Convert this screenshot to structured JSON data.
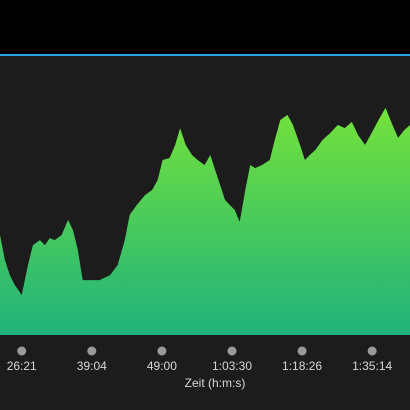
{
  "chart_data": {
    "type": "area",
    "xlabel": "Zeit (h:m:s)",
    "x": [
      -0.31,
      -0.24,
      -0.17,
      -0.1,
      0,
      0.09,
      0.16,
      0.26,
      0.33,
      0.4,
      0.47,
      0.57,
      0.66,
      0.73,
      0.8,
      0.87,
      0.97,
      1.11,
      1.26,
      1.37,
      1.47,
      1.54,
      1.64,
      1.76,
      1.86,
      1.94,
      2.01,
      2.11,
      2.19,
      2.26,
      2.34,
      2.43,
      2.51,
      2.61,
      2.69,
      2.76,
      2.83,
      2.9,
      2.97,
      3.04,
      3.11,
      3.19,
      3.26,
      3.33,
      3.43,
      3.54,
      3.61,
      3.69,
      3.79,
      3.87,
      3.97,
      4.04,
      4.11,
      4.19,
      4.29,
      4.4,
      4.51,
      4.61,
      4.71,
      4.8,
      4.9,
      5.0,
      5.09,
      5.19,
      5.29,
      5.37,
      5.46,
      5.54
    ],
    "values": [
      35.7,
      26.8,
      21.4,
      17.9,
      14.3,
      25,
      32.1,
      33.9,
      32.1,
      34.6,
      33.9,
      35.7,
      41.1,
      37.5,
      30.4,
      19.6,
      19.6,
      19.6,
      21.4,
      25,
      33.9,
      42.9,
      46.4,
      50,
      51.8,
      55.4,
      62.5,
      63.2,
      67.9,
      73.9,
      67.9,
      64.3,
      62.5,
      60.7,
      64.3,
      58.9,
      53.6,
      48.2,
      46.4,
      44.6,
      40.4,
      51.8,
      60.7,
      59.6,
      60.7,
      62.5,
      69.6,
      76.8,
      78.6,
      75,
      67.9,
      62.5,
      64.3,
      66.1,
      69.6,
      72.1,
      75,
      73.9,
      76.1,
      71.4,
      67.9,
      72.5,
      76.8,
      81.1,
      75,
      70.4,
      73.2,
      75
    ],
    "gradient": [
      "#74e23a",
      "#1fb27c"
    ],
    "xlim": [
      -0.31,
      5.54
    ],
    "ylim": [
      0,
      100
    ],
    "xticks": [
      {
        "value": 0,
        "label": "26:21"
      },
      {
        "value": 1,
        "label": "39:04"
      },
      {
        "value": 2,
        "label": "49:00"
      },
      {
        "value": 3,
        "label": "1:03:30"
      },
      {
        "value": 4,
        "label": "1:18:26"
      },
      {
        "value": 5,
        "label": "1:35:14"
      }
    ]
  }
}
